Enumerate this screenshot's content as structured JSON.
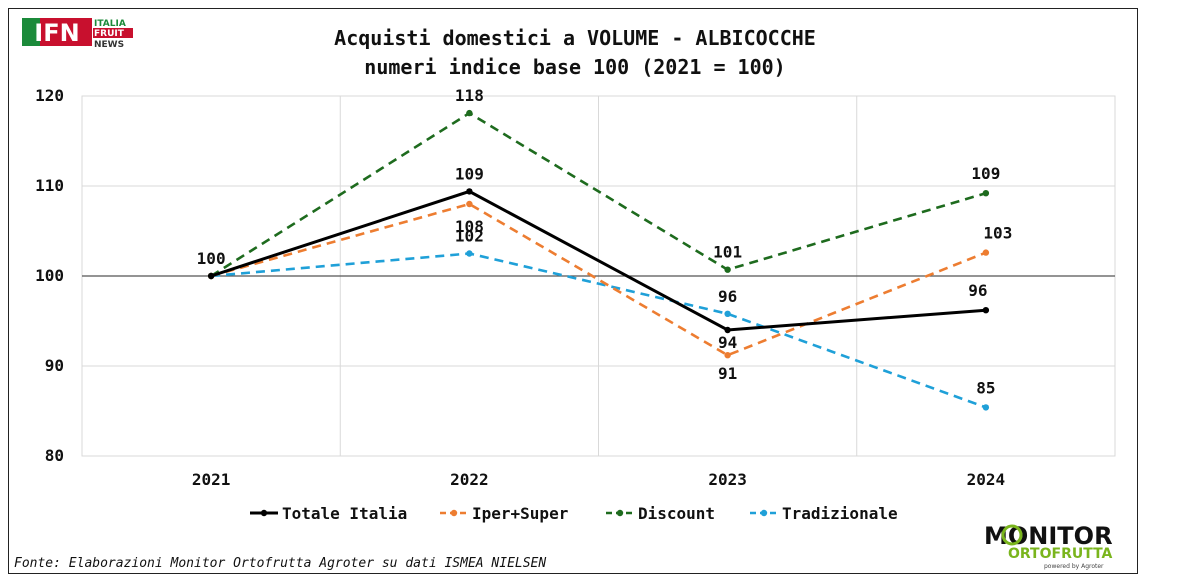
{
  "logos": {
    "ifn_text": "IFN",
    "ifn_line1": "ITALIA",
    "ifn_line2": "FRUIT",
    "ifn_line3": "NEWS",
    "monitor_main": "MONITOR",
    "monitor_sub": "ORTOFRUTTA",
    "monitor_powered": "powered by Agroter"
  },
  "source_note": "Fonte: Elaborazioni Monitor Ortofrutta Agroter su dati ISMEA NIELSEN",
  "chart_data": {
    "type": "line",
    "title": "Acquisti domestici a VOLUME - ALBICOCCHE",
    "subtitle": "numeri indice base 100 (2021 = 100)",
    "categories": [
      "2021",
      "2022",
      "2023",
      "2024"
    ],
    "ylim": [
      80,
      120
    ],
    "yticks": [
      80,
      90,
      100,
      110,
      120
    ],
    "grid": true,
    "legend_position": "bottom",
    "series": [
      {
        "name": "Totale Italia",
        "color": "#000000",
        "dash": "solid",
        "values": [
          100,
          109.4,
          94,
          96.2
        ],
        "labels": [
          "100",
          "109",
          "94",
          "96"
        ]
      },
      {
        "name": "Iper+Super",
        "color": "#ED7D31",
        "dash": "dashed",
        "values": [
          100,
          108,
          91.2,
          102.6
        ],
        "labels": [
          "",
          "108",
          "91",
          "103"
        ]
      },
      {
        "name": "Discount",
        "color": "#1E6B1E",
        "dash": "dashed",
        "values": [
          100,
          118.1,
          100.7,
          109.2
        ],
        "labels": [
          "",
          "118",
          "101",
          "109"
        ]
      },
      {
        "name": "Tradizionale",
        "color": "#1FA0D8",
        "dash": "dashed",
        "values": [
          100,
          102.5,
          95.8,
          85.4
        ],
        "labels": [
          "",
          "102",
          "96",
          "85"
        ]
      }
    ]
  }
}
